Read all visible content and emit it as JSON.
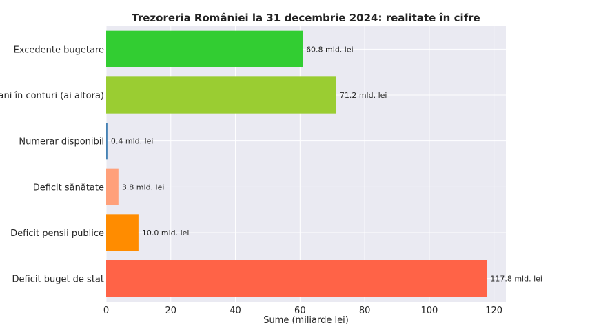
{
  "chart_data": {
    "type": "bar",
    "orientation": "horizontal",
    "title": "Trezoreria României la 31 decembrie 2024: realitate în cifre",
    "xlabel": "Sume (miliarde lei)",
    "ylabel": "",
    "xlim": [
      0,
      123.7
    ],
    "xticks": [
      0,
      20,
      40,
      60,
      80,
      100,
      120
    ],
    "grid": true,
    "categories": [
      "Excedente bugetare",
      "Bani în conturi (ai altora)",
      "Numerar disponibil",
      "Deficit sănătate",
      "Deficit pensii publice",
      "Deficit buget de stat"
    ],
    "values": [
      60.8,
      71.2,
      0.4,
      3.8,
      10.0,
      117.8
    ],
    "value_labels": [
      "60.8 mld. lei",
      "71.2 mld. lei",
      "0.4 mld. lei",
      "3.8 mld. lei",
      "10.0 mld. lei",
      "117.8 mld. lei"
    ],
    "colors": [
      "#32cd32",
      "#9acd32",
      "#4682b4",
      "#ffa07a",
      "#ff8c00",
      "#ff6347"
    ],
    "plot_background": "#eaeaf2",
    "grid_color": "#ffffff"
  }
}
